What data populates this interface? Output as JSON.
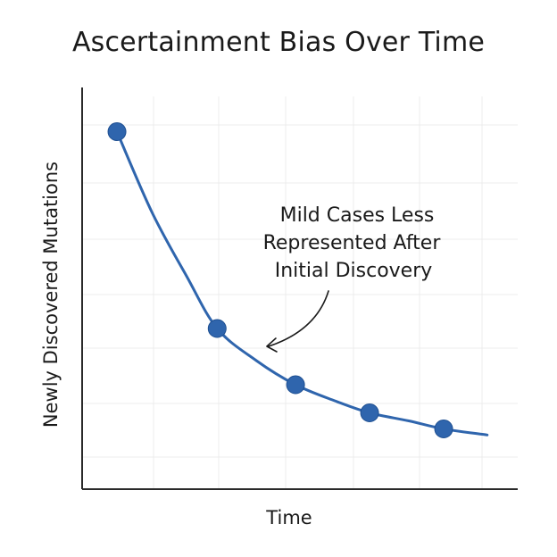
{
  "colors": {
    "line": "#2f65ad",
    "marker": "#2f65ad",
    "marker_stroke": "#1e4f91",
    "axis": "#2a2a2a",
    "grid": "#ececec",
    "arrow": "#1a1a1a"
  },
  "chart_data": {
    "type": "line",
    "title": "Ascertainment Bias Over Time",
    "xlabel": "Time",
    "ylabel": "Newly Discovered Mutations",
    "xlim": [
      0,
      10
    ],
    "ylim": [
      0,
      10
    ],
    "grid": true,
    "points": [
      {
        "x": 0.8,
        "y": 8.9
      },
      {
        "x": 3.1,
        "y": 4.0
      },
      {
        "x": 4.9,
        "y": 2.6
      },
      {
        "x": 6.6,
        "y": 1.9
      },
      {
        "x": 8.3,
        "y": 1.5
      }
    ],
    "curve": [
      {
        "x": 0.8,
        "y": 8.9
      },
      {
        "x": 1.6,
        "y": 6.9
      },
      {
        "x": 2.4,
        "y": 5.3
      },
      {
        "x": 3.1,
        "y": 4.0
      },
      {
        "x": 4.0,
        "y": 3.2
      },
      {
        "x": 4.9,
        "y": 2.6
      },
      {
        "x": 5.8,
        "y": 2.2
      },
      {
        "x": 6.6,
        "y": 1.9
      },
      {
        "x": 7.5,
        "y": 1.7
      },
      {
        "x": 8.3,
        "y": 1.5
      },
      {
        "x": 9.3,
        "y": 1.35
      }
    ],
    "annotation": {
      "lines": [
        "Mild Cases Less",
        "Represented After",
        "Initial Discovery"
      ],
      "points_to": {
        "x": 4.2,
        "y": 3.6
      }
    }
  }
}
